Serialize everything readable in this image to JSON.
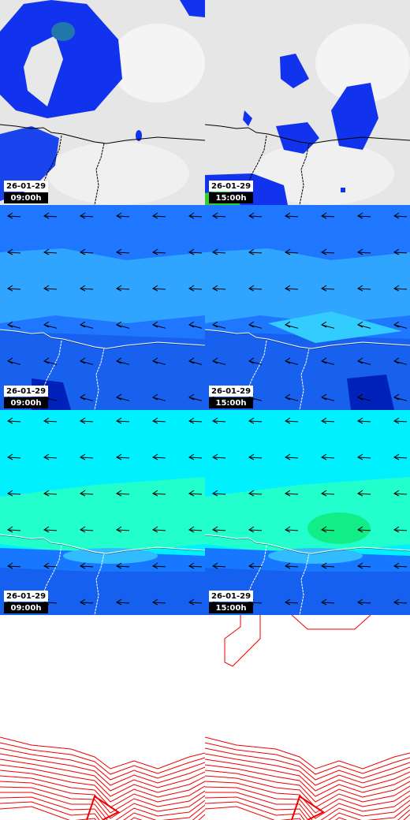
{
  "panels": [
    {
      "date": "26-01-29",
      "time": "09:00h"
    },
    {
      "date": "26-01-29",
      "time": "15:00h"
    },
    {
      "date": "26-01-29",
      "time": "09:00h"
    },
    {
      "date": "26-01-29",
      "time": "15:00h"
    },
    {
      "date": "26-01-29",
      "time": "09:00h"
    },
    {
      "date": "26-01-29",
      "time": "15:00h"
    }
  ]
}
